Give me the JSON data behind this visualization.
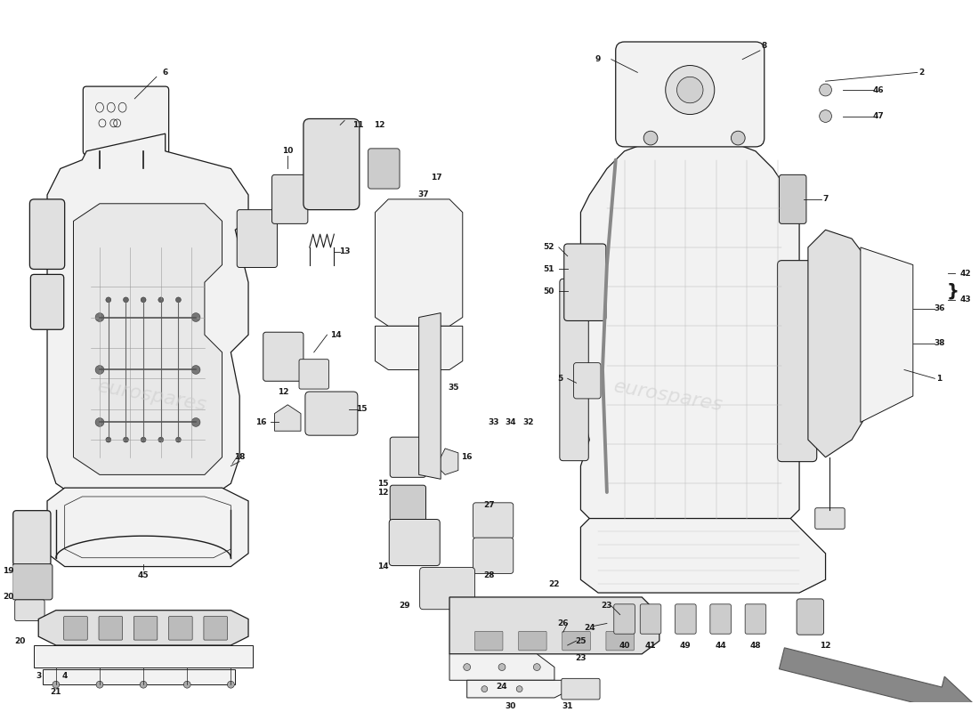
{
  "background_color": "#ffffff",
  "line_color": "#1a1a1a",
  "watermark_color": "#cccccc",
  "watermark_text1": "eurospares",
  "watermark_text2": "eurospares",
  "figsize": [
    11.0,
    8.0
  ],
  "dpi": 100,
  "xlim": [
    0,
    110
  ],
  "ylim": [
    0,
    80
  ],
  "lw_main": 0.9,
  "lw_fine": 0.5,
  "label_fontsize": 6.5
}
